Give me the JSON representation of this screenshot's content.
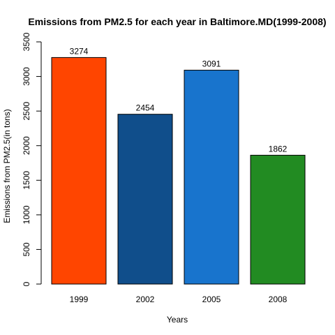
{
  "chart_data": {
    "type": "bar",
    "title": "Emissions from PM2.5 for each year in Baltimore.MD(1999-2008)",
    "xlabel": "Years",
    "ylabel": "Emissions from PM2.5(in tons)",
    "categories": [
      "1999",
      "2002",
      "2005",
      "2008"
    ],
    "values": [
      3274,
      2454,
      3091,
      1862
    ],
    "data_labels": [
      "3274",
      "2454",
      "3091",
      "1862"
    ],
    "colors": [
      "#FF4500",
      "#104E8B",
      "#1874CD",
      "#228B22"
    ],
    "ylim": [
      0,
      3500
    ],
    "yticks": [
      0,
      500,
      1000,
      1500,
      2000,
      2500,
      3000,
      3500
    ],
    "ytick_labels": [
      "0",
      "500",
      "1000",
      "1500",
      "2000",
      "2500",
      "3000",
      "3500"
    ],
    "grid": false,
    "legend": "none"
  }
}
